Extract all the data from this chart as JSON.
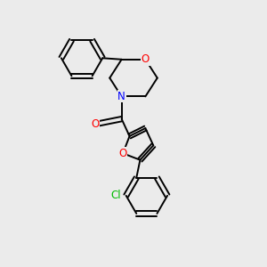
{
  "bg_color": "#ebebeb",
  "atom_colors": {
    "O": "#ff0000",
    "N": "#0000ff",
    "Cl": "#00bb00",
    "C": "#000000"
  },
  "line_color": "#000000",
  "line_width": 1.4,
  "font_size": 8.5,
  "figsize": [
    3.0,
    3.0
  ],
  "dpi": 100
}
